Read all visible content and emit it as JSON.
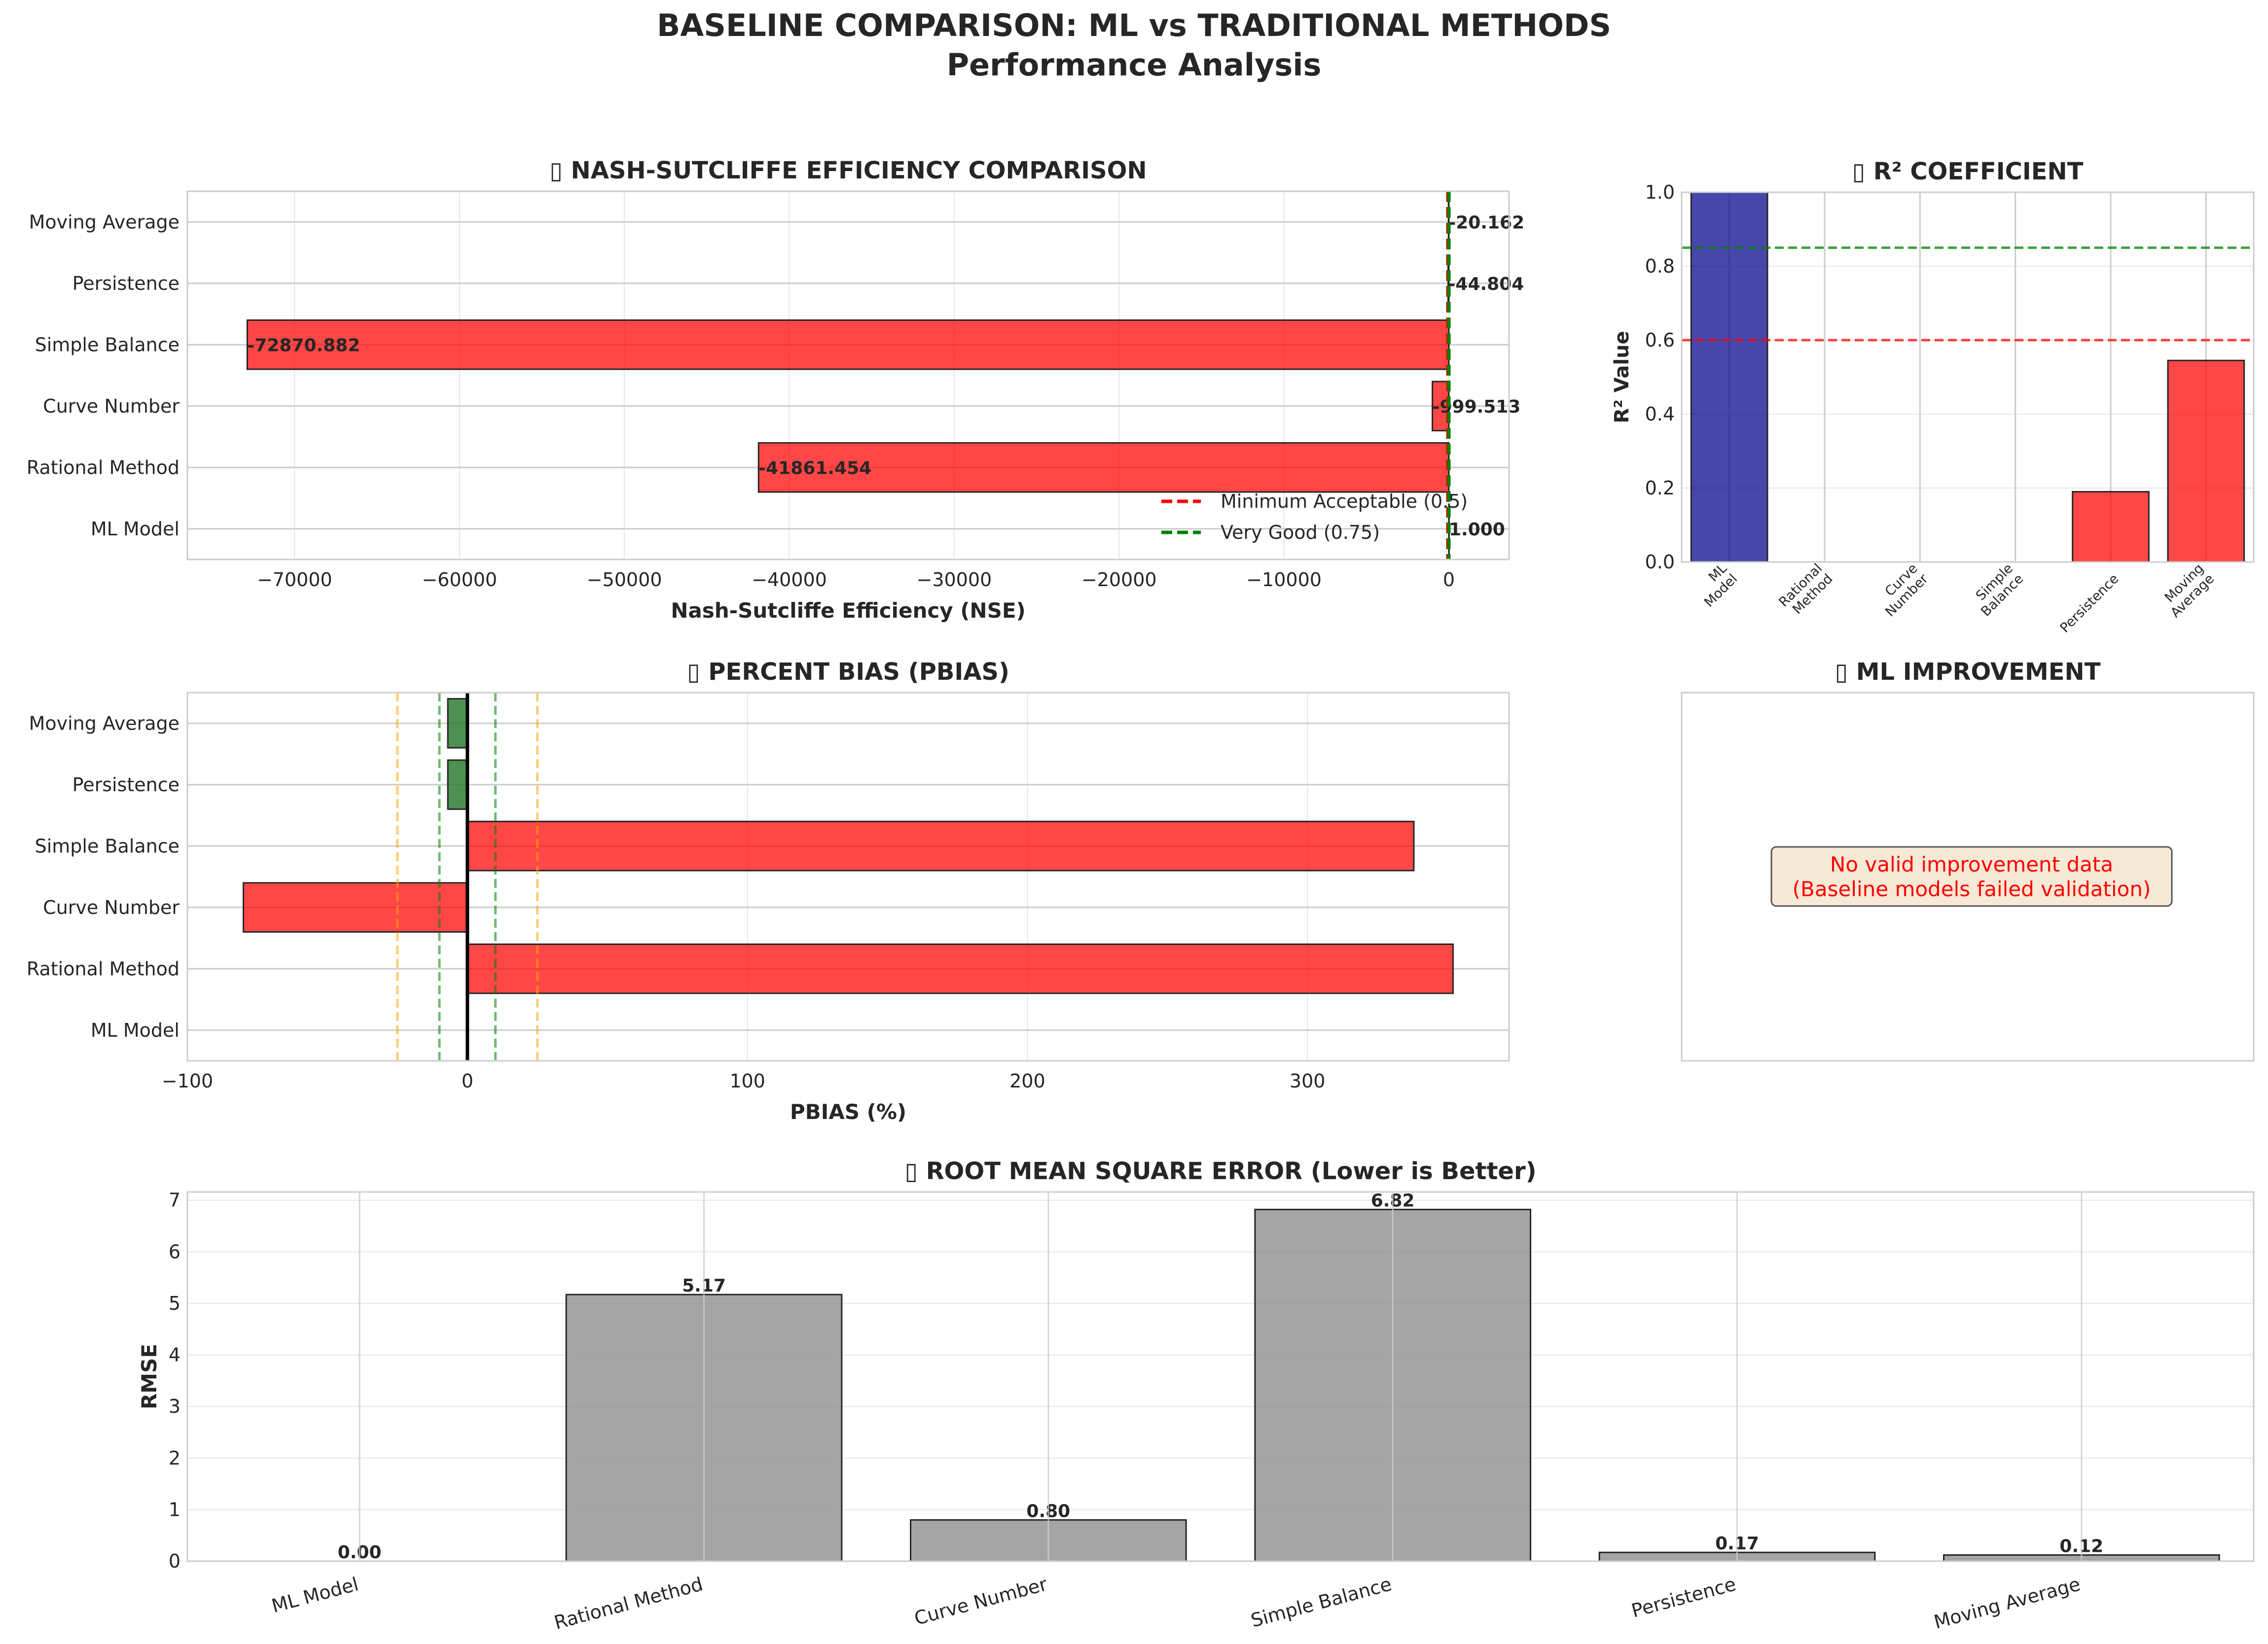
{
  "figure": {
    "title_line1": "BASELINE COMPARISON: ML vs TRADITIONAL METHODS",
    "title_line2": "Performance Analysis"
  },
  "colors": {
    "fail": "#ff0000",
    "pass": "#2e7d32",
    "ml": "#00008b",
    "rmse": "#8c8c8c",
    "ref_red": "#ff0000",
    "ref_green": "#008000",
    "ref_orange": "#ffa500",
    "edge": "#262626"
  },
  "chart_data": [
    {
      "id": "nse",
      "type": "bar",
      "orientation": "horizontal",
      "title": "▯ NASH-SUTCLIFFE EFFICIENCY COMPARISON",
      "xlabel": "Nash-Sutcliffe Efficiency (NSE)",
      "categories": [
        "ML Model",
        "Rational Method",
        "Curve Number",
        "Simple Balance",
        "Persistence",
        "Moving Average"
      ],
      "values": [
        1.0,
        -41861.454,
        -999.513,
        -72870.882,
        -44.804,
        -20.162
      ],
      "value_labels": [
        "1.000",
        "-41861.454",
        "-999.513",
        "-72870.882",
        "-44.804",
        "-20.162"
      ],
      "xlim": [
        -76500,
        3650
      ],
      "xticks": [
        -70000,
        -60000,
        -50000,
        -40000,
        -30000,
        -20000,
        -10000,
        0
      ],
      "xtick_labels": [
        "−70000",
        "−60000",
        "−50000",
        "−40000",
        "−30000",
        "−20000",
        "−10000",
        "0"
      ],
      "reference_lines": [
        {
          "value": 0.5,
          "label": "Minimum Acceptable (0.5)",
          "color": "#ff0000"
        },
        {
          "value": 0.75,
          "label": "Very Good (0.75)",
          "color": "#008000"
        }
      ],
      "legend": "lower-right",
      "grid": true
    },
    {
      "id": "r2",
      "type": "bar",
      "title": "▯ R² COEFFICIENT",
      "ylabel": "R² Value",
      "categories": [
        "ML\nModel",
        "Rational\nMethod",
        "Curve\nNumber",
        "Simple\nBalance",
        "Persistence",
        "Moving\nAverage"
      ],
      "values": [
        1.0,
        0.0,
        0.0,
        0.0,
        0.19,
        0.545
      ],
      "ylim": [
        0,
        1.0
      ],
      "yticks": [
        0.0,
        0.2,
        0.4,
        0.6,
        0.8,
        1.0
      ],
      "ytick_labels": [
        "0.0",
        "0.2",
        "0.4",
        "0.6",
        "0.8",
        "1.0"
      ],
      "reference_lines": [
        {
          "value": 0.6,
          "color": "#ff0000"
        },
        {
          "value": 0.85,
          "color": "#008000"
        }
      ],
      "grid": true
    },
    {
      "id": "pbias",
      "type": "bar",
      "orientation": "horizontal",
      "title": "▯ PERCENT BIAS (PBIAS)",
      "xlabel": "PBIAS (%)",
      "categories": [
        "ML Model",
        "Rational Method",
        "Curve Number",
        "Simple Balance",
        "Persistence",
        "Moving Average"
      ],
      "values": [
        0.0,
        352.0,
        -80.0,
        338.0,
        -7.0,
        -7.0
      ],
      "xlim": [
        -100,
        372
      ],
      "xticks": [
        -100,
        0,
        100,
        200,
        300
      ],
      "xtick_labels": [
        "−100",
        "0",
        "100",
        "200",
        "300"
      ],
      "reference_lines": [
        {
          "value": -25,
          "color": "#ffa500"
        },
        {
          "value": 25,
          "color": "#ffa500"
        },
        {
          "value": -10,
          "color": "#008000"
        },
        {
          "value": 10,
          "color": "#008000"
        },
        {
          "value": 0,
          "color": "#000000"
        }
      ],
      "grid": true
    },
    {
      "id": "improvement",
      "type": "table",
      "title": "▯ ML IMPROVEMENT",
      "message_line1": "No valid improvement data",
      "message_line2": "(Baseline models failed validation)"
    },
    {
      "id": "rmse",
      "type": "bar",
      "title": "▯ ROOT MEAN SQUARE ERROR (Lower is Better)",
      "ylabel": "RMSE",
      "categories": [
        "ML Model",
        "Rational Method",
        "Curve Number",
        "Simple Balance",
        "Persistence",
        "Moving Average"
      ],
      "values": [
        0.0,
        5.17,
        0.8,
        6.82,
        0.17,
        0.12
      ],
      "value_labels": [
        "0.00",
        "5.17",
        "0.80",
        "6.82",
        "0.17",
        "0.12"
      ],
      "ylim": [
        0,
        7.16
      ],
      "yticks": [
        0,
        1,
        2,
        3,
        4,
        5,
        6,
        7
      ],
      "ytick_labels": [
        "0",
        "1",
        "2",
        "3",
        "4",
        "5",
        "6",
        "7"
      ],
      "grid": true
    }
  ]
}
